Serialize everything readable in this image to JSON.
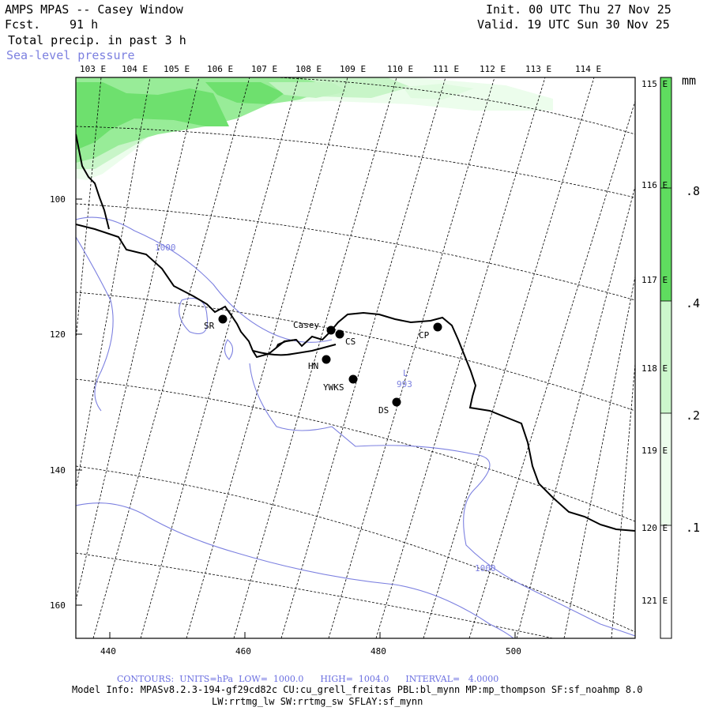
{
  "header": {
    "title": "AMPS MPAS -- Casey Window",
    "fcst_label": "Fcst.",
    "fcst_value": "91 h",
    "field1": "Total precip. in past 3 h",
    "field2": "Sea-level pressure",
    "init": "Init. 00 UTC Thu 27 Nov 25",
    "valid": "Valid. 19 UTC Sun 30 Nov 25"
  },
  "map": {
    "top_lon_labels": [
      "103 E",
      "104 E",
      "105 E",
      "106 E",
      "107 E",
      "108 E",
      "109 E",
      "110 E",
      "111 E",
      "112 E",
      "113 E",
      "114 E"
    ],
    "right_lon_labels": [
      "115 E",
      "116 E",
      "117 E",
      "118 E",
      "119 E",
      "120 E",
      "121 E"
    ],
    "left_axis_labels": [
      "100",
      "120",
      "140",
      "160"
    ],
    "bottom_axis_labels": [
      "440",
      "460",
      "480",
      "500"
    ],
    "stations": [
      {
        "label": "SR"
      },
      {
        "label": "Casey"
      },
      {
        "label": "CS"
      },
      {
        "label": "CP"
      },
      {
        "label": "HN"
      },
      {
        "label": "YWKS"
      },
      {
        "label": "DS"
      }
    ],
    "low_label": "L",
    "low_value": "993",
    "contour_labels": [
      "1000",
      "1000"
    ],
    "colors": {
      "coast": "#000000",
      "isobar": "#7c80e0",
      "precip_light": "#e8fce8",
      "precip_mid": "#aef0ae",
      "precip_strong": "#5fdc5f"
    }
  },
  "colorbar": {
    "unit": "mm",
    "labels": [
      ".8",
      ".4",
      ".2",
      ".1"
    ],
    "segment_colors": [
      "#5fdc5f",
      "#98ec98",
      "#ccf7cc",
      "#ecfdec",
      "#ffffff"
    ]
  },
  "footer": {
    "contours": "CONTOURS:  UNITS=hPa  LOW=  1000.0      HIGH=  1004.0      INTERVAL=   4.0000",
    "model_info": "Model Info: MPASv8.2.3-194-gf29cd82c CU:cu_grell_freitas PBL:bl_mynn MP:mp_thompson SF:sf_noahmp 8.0",
    "model_info2": "LW:rrtmg_lw SW:rrtmg_sw SFLAY:sf_mynn"
  }
}
